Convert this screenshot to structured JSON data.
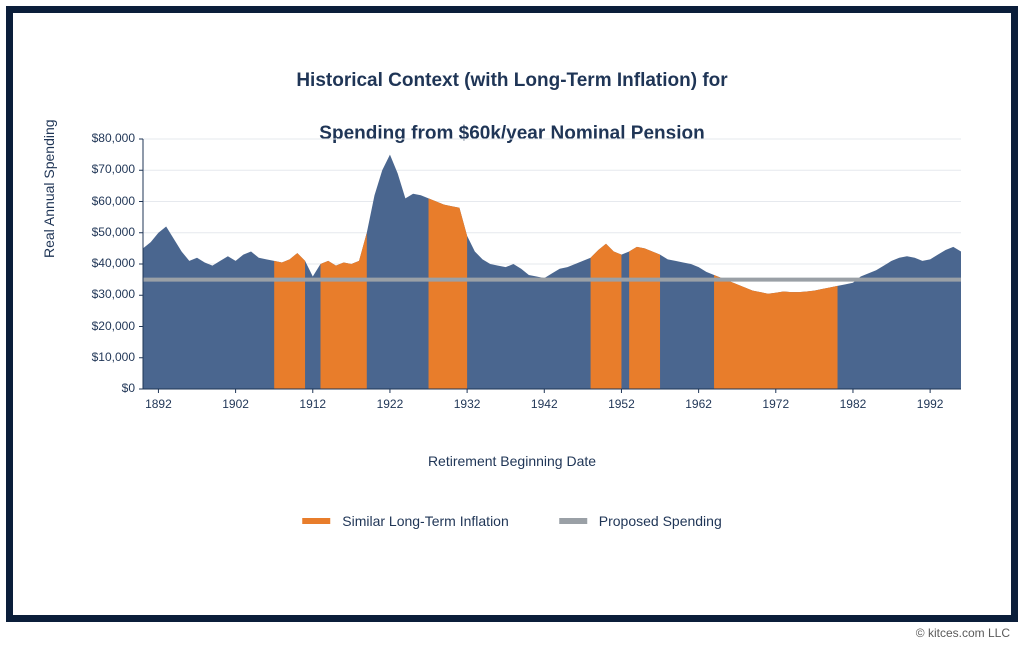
{
  "chart": {
    "type": "area",
    "title_line1": "Historical Context (with Long-Term Inflation) for",
    "title_line2": "Spending from $60k/year Nominal Pension",
    "title_fontsize": 19,
    "ylabel": "Real Annual Spending",
    "xlabel": "Retirement Beginning Date",
    "label_fontsize": 14,
    "tick_fontsize": 12,
    "xlim": [
      1890,
      1996
    ],
    "ylim": [
      0,
      80000
    ],
    "ytick_step": 10000,
    "ytick_labels": [
      "$0",
      "$10,000",
      "$20,000",
      "$30,000",
      "$40,000",
      "$50,000",
      "$60,000",
      "$70,000",
      "$80,000"
    ],
    "xtick_step": 10,
    "xtick_start": 1892,
    "xtick_end": 1992,
    "xtick_labels": [
      "1892",
      "1902",
      "1912",
      "1922",
      "1932",
      "1942",
      "1952",
      "1962",
      "1972",
      "1982",
      "1992"
    ],
    "proposed_spending": 35000,
    "background_color": "#ffffff",
    "border_color": "#0b1e3a",
    "axis_color": "#1f3556",
    "primary_area_color": "#4a668f",
    "highlight_area_color": "#e87d2b",
    "proposed_line_color": "#9aa0a6",
    "proposed_line_width": 4,
    "highlight_periods": [
      [
        1907,
        1911
      ],
      [
        1913,
        1919
      ],
      [
        1927,
        1932
      ],
      [
        1948,
        1952
      ],
      [
        1953,
        1957
      ],
      [
        1964,
        1980
      ]
    ],
    "points": [
      [
        1890,
        45000
      ],
      [
        1891,
        47000
      ],
      [
        1892,
        50000
      ],
      [
        1893,
        52000
      ],
      [
        1894,
        48000
      ],
      [
        1895,
        44000
      ],
      [
        1896,
        41000
      ],
      [
        1897,
        42000
      ],
      [
        1898,
        40500
      ],
      [
        1899,
        39500
      ],
      [
        1900,
        41000
      ],
      [
        1901,
        42500
      ],
      [
        1902,
        41000
      ],
      [
        1903,
        43000
      ],
      [
        1904,
        44000
      ],
      [
        1905,
        42000
      ],
      [
        1906,
        41500
      ],
      [
        1907,
        41000
      ],
      [
        1908,
        40500
      ],
      [
        1909,
        41500
      ],
      [
        1910,
        43500
      ],
      [
        1911,
        41000
      ],
      [
        1912,
        36000
      ],
      [
        1913,
        40000
      ],
      [
        1914,
        41000
      ],
      [
        1915,
        39500
      ],
      [
        1916,
        40500
      ],
      [
        1917,
        40000
      ],
      [
        1918,
        41000
      ],
      [
        1919,
        50000
      ],
      [
        1920,
        62000
      ],
      [
        1921,
        70000
      ],
      [
        1922,
        75000
      ],
      [
        1923,
        69000
      ],
      [
        1924,
        61000
      ],
      [
        1925,
        62500
      ],
      [
        1926,
        62000
      ],
      [
        1927,
        61000
      ],
      [
        1928,
        60000
      ],
      [
        1929,
        59000
      ],
      [
        1930,
        58500
      ],
      [
        1931,
        58000
      ],
      [
        1932,
        49000
      ],
      [
        1933,
        44000
      ],
      [
        1934,
        41500
      ],
      [
        1935,
        40000
      ],
      [
        1936,
        39500
      ],
      [
        1937,
        39000
      ],
      [
        1938,
        40000
      ],
      [
        1939,
        38500
      ],
      [
        1940,
        36500
      ],
      [
        1941,
        36000
      ],
      [
        1942,
        35500
      ],
      [
        1943,
        37000
      ],
      [
        1944,
        38500
      ],
      [
        1945,
        39000
      ],
      [
        1946,
        40000
      ],
      [
        1947,
        41000
      ],
      [
        1948,
        42000
      ],
      [
        1949,
        44500
      ],
      [
        1950,
        46500
      ],
      [
        1951,
        44000
      ],
      [
        1952,
        43000
      ],
      [
        1953,
        44000
      ],
      [
        1954,
        45500
      ],
      [
        1955,
        45000
      ],
      [
        1956,
        44000
      ],
      [
        1957,
        43000
      ],
      [
        1958,
        41500
      ],
      [
        1959,
        41000
      ],
      [
        1960,
        40500
      ],
      [
        1961,
        40000
      ],
      [
        1962,
        39000
      ],
      [
        1963,
        37500
      ],
      [
        1964,
        36500
      ],
      [
        1965,
        35500
      ],
      [
        1966,
        34500
      ],
      [
        1967,
        33500
      ],
      [
        1968,
        32500
      ],
      [
        1969,
        31500
      ],
      [
        1970,
        31000
      ],
      [
        1971,
        30500
      ],
      [
        1972,
        30800
      ],
      [
        1973,
        31200
      ],
      [
        1974,
        31000
      ],
      [
        1975,
        31000
      ],
      [
        1976,
        31200
      ],
      [
        1977,
        31500
      ],
      [
        1978,
        32000
      ],
      [
        1979,
        32500
      ],
      [
        1980,
        33000
      ],
      [
        1981,
        33500
      ],
      [
        1982,
        34000
      ],
      [
        1983,
        36000
      ],
      [
        1984,
        37000
      ],
      [
        1985,
        38000
      ],
      [
        1986,
        39500
      ],
      [
        1987,
        41000
      ],
      [
        1988,
        42000
      ],
      [
        1989,
        42500
      ],
      [
        1990,
        42000
      ],
      [
        1991,
        41000
      ],
      [
        1992,
        41500
      ],
      [
        1993,
        43000
      ],
      [
        1994,
        44500
      ],
      [
        1995,
        45500
      ],
      [
        1996,
        44000
      ]
    ]
  },
  "legend": {
    "item1": "Similar Long-Term Inflation",
    "item2": "Proposed Spending"
  },
  "copyright": "© kitces.com LLC"
}
